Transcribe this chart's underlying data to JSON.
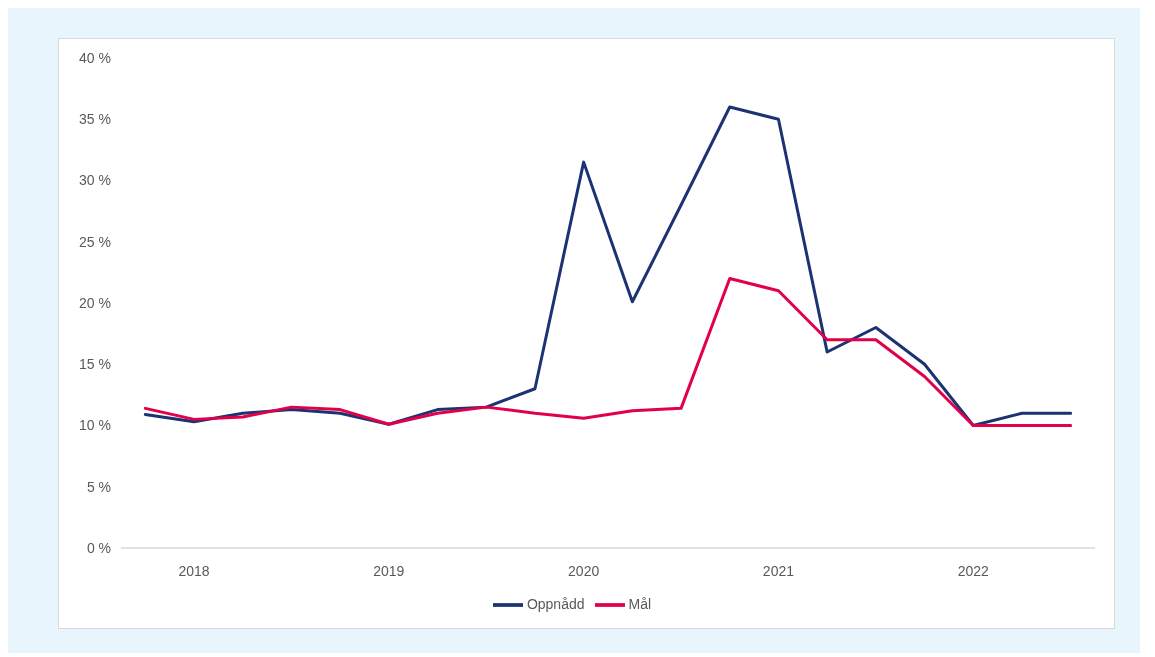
{
  "chart_data": {
    "type": "line",
    "categories": [
      null,
      "2018",
      null,
      null,
      null,
      "2019",
      null,
      null,
      null,
      "2020",
      null,
      null,
      null,
      "2021",
      null,
      null,
      null,
      "2022",
      null,
      null
    ],
    "series": [
      {
        "name": "Oppnådd",
        "color": "#1b3372",
        "values": [
          10.9,
          10.3,
          11.0,
          11.3,
          11.0,
          10.1,
          11.3,
          11.5,
          13.0,
          31.5,
          20.1,
          28.0,
          36.0,
          35.0,
          16.0,
          18.0,
          15.0,
          10.0,
          11.0,
          11.0
        ]
      },
      {
        "name": "Mål",
        "color": "#e2004b",
        "values": [
          11.4,
          10.5,
          10.7,
          11.5,
          11.3,
          10.1,
          11.0,
          11.5,
          11.0,
          10.6,
          11.2,
          11.4,
          22.0,
          21.0,
          17.0,
          17.0,
          14.0,
          10.0,
          10.0,
          10.0
        ]
      }
    ],
    "ylim": [
      0,
      40
    ],
    "yticks": [
      {
        "value": 0,
        "label": "0 %"
      },
      {
        "value": 5,
        "label": "5 %"
      },
      {
        "value": 10,
        "label": "10 %"
      },
      {
        "value": 15,
        "label": "15 %"
      },
      {
        "value": 20,
        "label": "20 %"
      },
      {
        "value": 25,
        "label": "25 %"
      },
      {
        "value": 30,
        "label": "30 %"
      },
      {
        "value": 35,
        "label": "35 %"
      },
      {
        "value": 40,
        "label": "40 %"
      }
    ],
    "legend": "bottom"
  }
}
